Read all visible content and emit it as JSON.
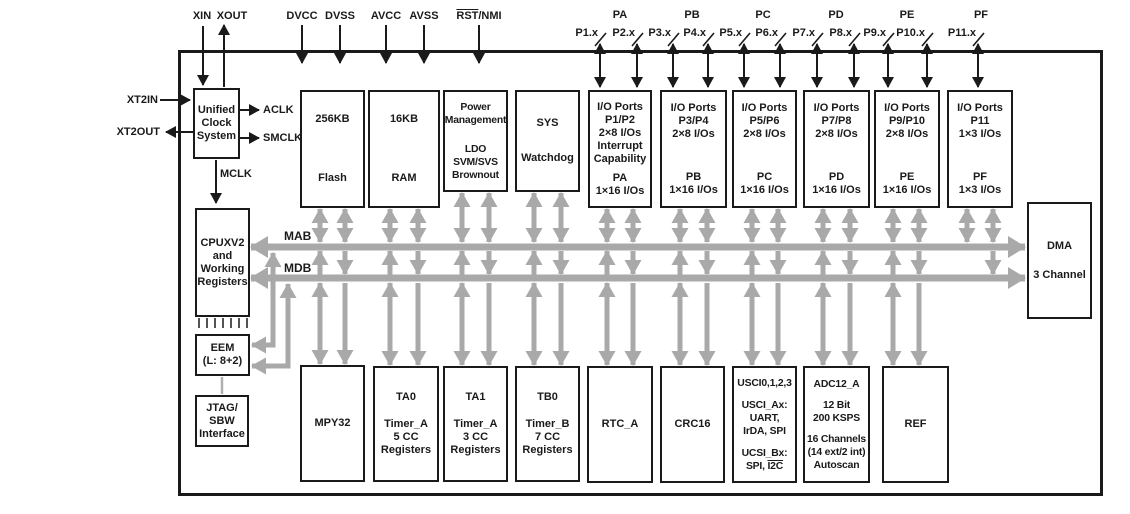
{
  "colors": {
    "line": "#1a1a1a",
    "bus": "#a9a9a9"
  },
  "top_pins": {
    "xin": "XIN",
    "xout": "XOUT",
    "dvcc": "DVCC",
    "dvss": "DVSS",
    "avcc": "AVCC",
    "avss": "AVSS",
    "rst_overline": "RST",
    "rst_rest": "/NMI"
  },
  "port_groups": [
    "PA",
    "PB",
    "PC",
    "PD",
    "PE",
    "PF"
  ],
  "pins": [
    "P1.x",
    "P2.x",
    "P3.x",
    "P4.x",
    "P5.x",
    "P6.x",
    "P7.x",
    "P8.x",
    "P9.x",
    "P10.x",
    "P11.x"
  ],
  "clock": {
    "xt2in": "XT2IN",
    "xt2out": "XT2OUT",
    "aclk": "ACLK",
    "smclk": "SMCLK",
    "mclk": "MCLK"
  },
  "buses": {
    "mab": "MAB",
    "mdb": "MDB"
  },
  "blocks": {
    "ucs": {
      "lines": [
        "Unified",
        "Clock",
        "System"
      ]
    },
    "flash": {
      "lines": [
        "256KB",
        "",
        "Flash"
      ]
    },
    "ram": {
      "lines": [
        "16KB",
        "",
        "RAM"
      ]
    },
    "pmm": {
      "lines": [
        "Power",
        "Management",
        "",
        "LDO",
        "SVM/SVS",
        "Brownout"
      ]
    },
    "sys": {
      "lines": [
        "SYS",
        "",
        "Watchdog"
      ]
    },
    "io12": {
      "lines": [
        "I/O Ports",
        "P1/P2",
        "2×8 I/Os",
        "Interrupt",
        "Capability",
        "",
        "PA",
        "1×16 I/Os"
      ]
    },
    "io34": {
      "lines": [
        "I/O Ports",
        "P3/P4",
        "2×8 I/Os",
        "",
        "PB",
        "1×16 I/Os"
      ]
    },
    "io56": {
      "lines": [
        "I/O Ports",
        "P5/P6",
        "2×8 I/Os",
        "",
        "PC",
        "1×16 I/Os"
      ]
    },
    "io78": {
      "lines": [
        "I/O Ports",
        "P7/P8",
        "2×8 I/Os",
        "",
        "PD",
        "1×16 I/Os"
      ]
    },
    "io910": {
      "lines": [
        "I/O Ports",
        "P9/P10",
        "2×8 I/Os",
        "",
        "PE",
        "1×16 I/Os"
      ]
    },
    "io11": {
      "lines": [
        "I/O Ports",
        "P11",
        "1×3 I/Os",
        "",
        "PF",
        "1×3 I/Os"
      ]
    },
    "cpu": {
      "lines": [
        "CPUXV2",
        "and",
        "Working",
        "Registers"
      ]
    },
    "eem": {
      "lines": [
        "EEM",
        "(L: 8+2)"
      ]
    },
    "jtag": {
      "lines": [
        "JTAG/",
        "SBW",
        "Interface"
      ]
    },
    "dma": {
      "lines": [
        "DMA",
        "",
        "3 Channel"
      ]
    },
    "mpy": {
      "lines": [
        "MPY32"
      ]
    },
    "ta0": {
      "lines": [
        "TA0",
        "",
        "Timer_A",
        "5 CC",
        "Registers"
      ]
    },
    "ta1": {
      "lines": [
        "TA1",
        "",
        "Timer_A",
        "3 CC",
        "Registers"
      ]
    },
    "tb0": {
      "lines": [
        "TB0",
        "",
        "Timer_B",
        "7 CC",
        "Registers"
      ]
    },
    "rtc": {
      "lines": [
        "RTC_A"
      ]
    },
    "crc": {
      "lines": [
        "CRC16"
      ]
    },
    "usci": {
      "lines": [
        "USCI0,1,2,3",
        "",
        "USCI_Ax:",
        "UART,",
        "IrDA, SPI",
        "",
        "UCSI_Bx:"
      ],
      "spi_prefix": "SPI, ",
      "i2c": "I2C"
    },
    "adc": {
      "lines": [
        "ADC12_A",
        "",
        "12 Bit",
        "200 KSPS",
        "",
        "16 Channels",
        "(14 ext/2 int)",
        "Autoscan"
      ]
    },
    "ref": {
      "lines": [
        "REF"
      ]
    }
  }
}
